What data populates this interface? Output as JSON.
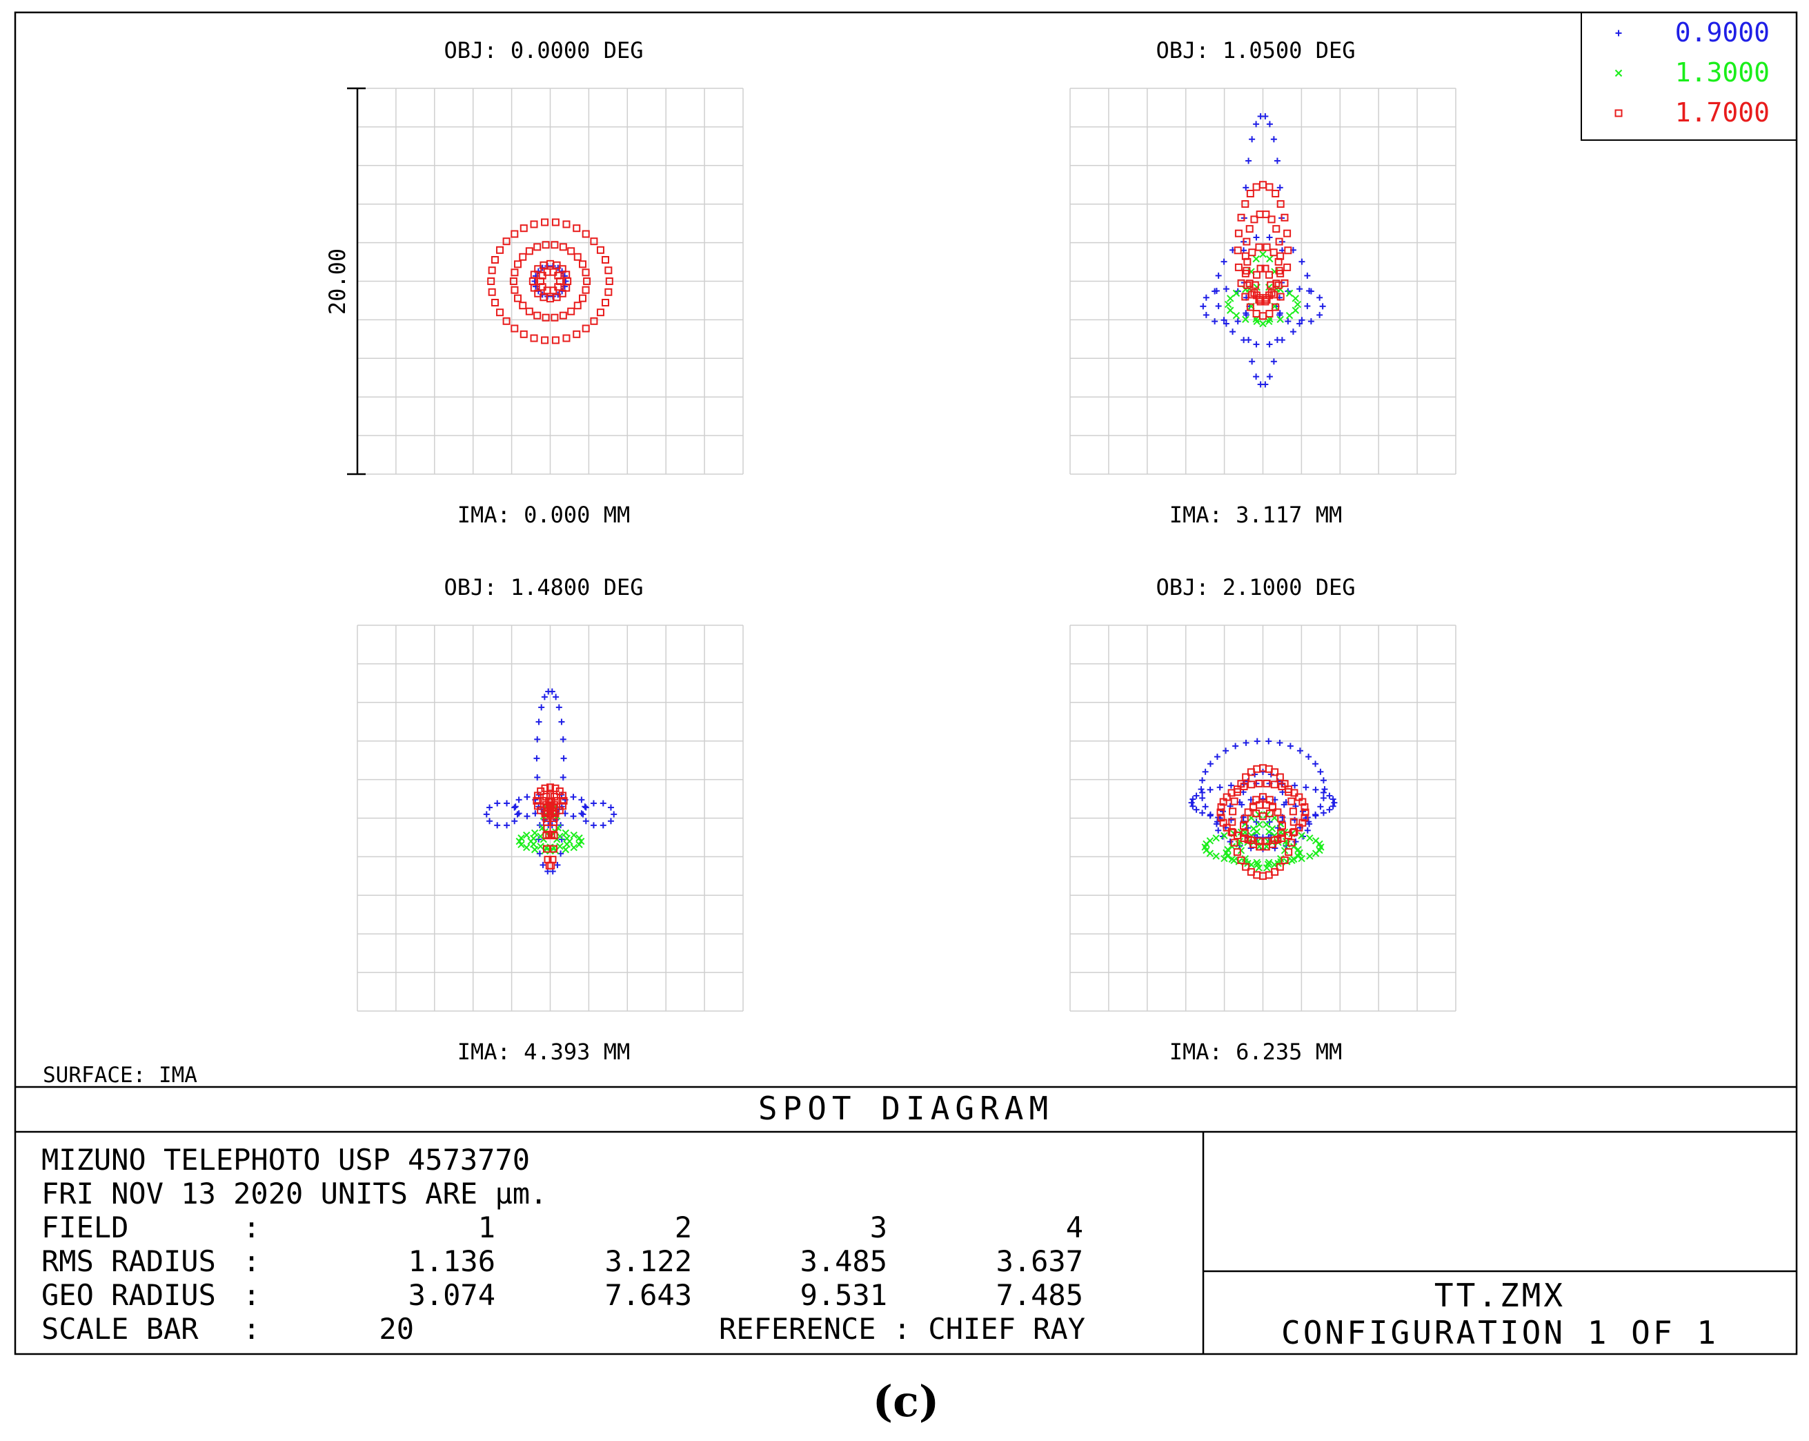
{
  "title": "SPOT DIAGRAM",
  "surface_label": "SURFACE: IMA",
  "caption": "(c)",
  "colors": {
    "w1": "#1f1fe6",
    "w2": "#1aee1a",
    "w3": "#e81c1c",
    "grid": "#cfcfcf",
    "frame": "#000000"
  },
  "legend": [
    {
      "marker": "+",
      "label": "0.9000",
      "color": "#1f1fe6"
    },
    {
      "marker": "×",
      "label": "1.3000",
      "color": "#1aee1a"
    },
    {
      "marker": "▫",
      "label": "1.7000",
      "color": "#e81c1c"
    }
  ],
  "info": {
    "lens_line": "MIZUNO TELEPHOTO USP 4573770",
    "date_line": "FRI NOV 13 2020  UNITS ARE µm.",
    "field_label": "FIELD",
    "rms_label": "RMS RADIUS",
    "geo_label": "GEO RADIUS",
    "scale_label": "SCALE BAR",
    "colon": ":",
    "fields": [
      "1",
      "2",
      "3",
      "4"
    ],
    "rms": [
      "1.136",
      "3.122",
      "3.485",
      "3.637"
    ],
    "geo": [
      "3.074",
      "7.643",
      "9.531",
      "7.485"
    ],
    "scale_value": "20",
    "reference": "REFERENCE   : CHIEF RAY",
    "file": "TT.ZMX",
    "config": "CONFIGURATION  1  OF  1"
  },
  "chart_data": {
    "type": "scatter",
    "title": "SPOT DIAGRAM",
    "units": "µm",
    "scale_bar_label": "20.00",
    "scale_bar_um": 20,
    "grid_divisions": 10,
    "axis_range_um": [
      -10,
      10
    ],
    "wavelengths_um": [
      0.9,
      1.3,
      1.7
    ],
    "fields": [
      {
        "obj": "OBJ: 0.0000 DEG",
        "ima": "IMA: 0.000 MM",
        "series": [
          {
            "wavelength": "0.9000",
            "rings": [
              [
                0,
                0,
                0.8,
                0.8,
                18,
                0
              ]
            ]
          },
          {
            "wavelength": "1.3000",
            "rings": []
          },
          {
            "wavelength": "1.7000",
            "rings": [
              [
                0,
                0,
                0.5,
                0.5,
                10,
                0
              ],
              [
                0,
                0,
                0.9,
                0.9,
                16,
                0
              ],
              [
                0,
                0,
                1.9,
                1.9,
                26,
                0
              ],
              [
                0,
                0,
                3.07,
                3.07,
                34,
                0
              ]
            ]
          }
        ]
      },
      {
        "obj": "OBJ: 1.0500 DEG",
        "ima": "IMA: 3.117 MM",
        "series": [
          {
            "wavelength": "0.9000",
            "rings": [
              [
                0,
                1.6,
                1.0,
                7.0,
                26,
                0
              ],
              [
                0,
                -0.5,
                2.4,
                2.8,
                22,
                0
              ],
              [
                -1.9,
                -1.3,
                1.2,
                0.9,
                12,
                0
              ],
              [
                1.9,
                -1.3,
                1.2,
                0.9,
                12,
                0
              ]
            ]
          },
          {
            "wavelength": "1.3000",
            "rings": [
              [
                0,
                -1.2,
                1.8,
                0.9,
                18,
                0
              ],
              [
                0,
                -0.4,
                0.7,
                1.8,
                12,
                0
              ]
            ]
          },
          {
            "wavelength": "1.7000",
            "rings": [
              [
                0,
                1.6,
                1.3,
                3.4,
                24,
                0
              ],
              [
                0,
                1.3,
                0.9,
                2.2,
                18,
                0
              ],
              [
                0,
                -0.2,
                0.4,
                0.9,
                10,
                0
              ],
              [
                0,
                0.4,
                0.9,
                1.4,
                14,
                0
              ]
            ]
          }
        ]
      },
      {
        "obj": "OBJ: 1.4800 DEG",
        "ima": "IMA: 4.393 MM",
        "series": [
          {
            "wavelength": "0.9000",
            "rings": [
              [
                0,
                3.1,
                0.7,
                3.5,
                22,
                0
              ],
              [
                -2.5,
                0.2,
                0.8,
                0.6,
                10,
                0
              ],
              [
                2.5,
                0.2,
                0.8,
                0.6,
                10,
                0
              ],
              [
                -1.2,
                0.6,
                0.6,
                0.5,
                8,
                0
              ],
              [
                1.2,
                0.6,
                0.6,
                0.5,
                8,
                0
              ],
              [
                0,
                -1.1,
                0.6,
                1.7,
                14,
                0
              ]
            ]
          },
          {
            "wavelength": "1.3000",
            "rings": [
              [
                0,
                -1.2,
                1.6,
                0.5,
                18,
                0
              ],
              [
                0,
                -1.2,
                1.0,
                0.3,
                12,
                0
              ],
              [
                0,
                -0.5,
                0.4,
                1.2,
                12,
                0
              ]
            ]
          },
          {
            "wavelength": "1.7000",
            "rings": [
              [
                0,
                -0.9,
                0.2,
                1.6,
                14,
                0
              ],
              [
                0,
                0.9,
                0.7,
                0.7,
                16,
                0
              ],
              [
                0,
                0.9,
                0.3,
                0.3,
                8,
                0
              ],
              [
                0,
                0,
                0.2,
                0.9,
                10,
                0
              ]
            ]
          }
        ]
      },
      {
        "obj": "OBJ: 2.1000 DEG",
        "ima": "IMA: 6.235 MM",
        "series": [
          {
            "wavelength": "0.9000",
            "rings": [
              [
                0,
                0.8,
                3.7,
                1.0,
                34,
                0
              ],
              [
                0,
                1.5,
                3.2,
                2.5,
                34,
                0
              ],
              [
                0,
                -0.3,
                2.4,
                1.3,
                24,
                0
              ],
              [
                0,
                0.7,
                1.1,
                1.7,
                16,
                0
              ]
            ]
          },
          {
            "wavelength": "1.3000",
            "rings": [
              [
                0,
                -1.5,
                3.0,
                0.8,
                30,
                0
              ],
              [
                0,
                -1.8,
                1.9,
                0.6,
                22,
                0
              ],
              [
                0,
                -1.2,
                1.2,
                1.4,
                18,
                0
              ],
              [
                0,
                -0.9,
                0.6,
                0.6,
                10,
                0
              ]
            ]
          },
          {
            "wavelength": "1.7000",
            "rings": [
              [
                0,
                0.3,
                2.2,
                1.5,
                34,
                0
              ],
              [
                0,
                -0.2,
                1.6,
                2.8,
                32,
                0
              ],
              [
                0,
                -0.4,
                1.0,
                1.1,
                18,
                0
              ],
              [
                0,
                0.6,
                0.5,
                0.5,
                8,
                0
              ]
            ]
          }
        ]
      }
    ]
  }
}
